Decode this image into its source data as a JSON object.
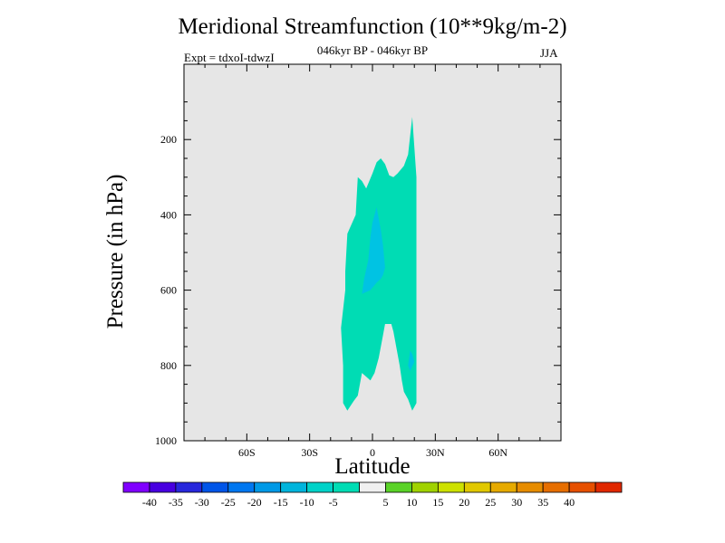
{
  "chart_data": {
    "type": "contour",
    "title": "Meridional Streamfunction (10**9kg/m-2)",
    "subtitle": "046kyr BP - 046kyr BP",
    "expt_label": "Expt = tdxoI-tdwzI",
    "season": "JJA",
    "xlabel": "Latitude",
    "ylabel": "Pressure (in hPa)",
    "xlim": [
      -90,
      90
    ],
    "ylim": [
      1000,
      0
    ],
    "x_ticks": [
      {
        "value": -60,
        "label": "60S"
      },
      {
        "value": -30,
        "label": "30S"
      },
      {
        "value": 0,
        "label": "0"
      },
      {
        "value": 30,
        "label": "30N"
      },
      {
        "value": 60,
        "label": "60N"
      }
    ],
    "y_ticks": [
      {
        "value": 200,
        "label": "200"
      },
      {
        "value": 400,
        "label": "400"
      },
      {
        "value": 600,
        "label": "600"
      },
      {
        "value": 800,
        "label": "800"
      },
      {
        "value": 1000,
        "label": "1000"
      }
    ],
    "background_color": "#e6e6e6",
    "regions": [
      {
        "level": "-10 to -5",
        "color": "#00dcb4",
        "points": [
          [
            -12,
            920
          ],
          [
            -14,
            900
          ],
          [
            -14,
            800
          ],
          [
            -15,
            700
          ],
          [
            -13,
            600
          ],
          [
            -13,
            550
          ],
          [
            -12,
            450
          ],
          [
            -8,
            400
          ],
          [
            -7,
            300
          ],
          [
            -5,
            310
          ],
          [
            -3,
            330
          ],
          [
            0,
            290
          ],
          [
            2,
            260
          ],
          [
            4,
            250
          ],
          [
            6,
            265
          ],
          [
            8,
            295
          ],
          [
            10,
            300
          ],
          [
            12,
            290
          ],
          [
            15,
            270
          ],
          [
            17,
            240
          ],
          [
            19,
            140
          ],
          [
            21,
            300
          ],
          [
            21,
            450
          ],
          [
            21,
            600
          ],
          [
            21,
            900
          ],
          [
            20,
            910
          ],
          [
            19,
            920
          ],
          [
            17,
            890
          ],
          [
            15,
            870
          ],
          [
            14,
            840
          ],
          [
            13,
            800
          ],
          [
            12,
            770
          ],
          [
            11,
            740
          ],
          [
            10,
            710
          ],
          [
            9,
            690
          ],
          [
            6,
            690
          ],
          [
            5,
            720
          ],
          [
            3,
            780
          ],
          [
            1,
            820
          ],
          [
            -1,
            840
          ],
          [
            -3,
            830
          ],
          [
            -5,
            820
          ],
          [
            -7,
            880
          ],
          [
            -9,
            895
          ]
        ]
      },
      {
        "level": "-15 to -10",
        "color": "#00c3e3",
        "points": [
          [
            -5,
            610
          ],
          [
            -1,
            600
          ],
          [
            2,
            580
          ],
          [
            4,
            570
          ],
          [
            5,
            560
          ],
          [
            6,
            540
          ],
          [
            5,
            480
          ],
          [
            4,
            440
          ],
          [
            3,
            410
          ],
          [
            2,
            380
          ],
          [
            0,
            420
          ],
          [
            -1,
            460
          ],
          [
            -2,
            520
          ],
          [
            -4,
            570
          ]
        ]
      },
      {
        "level": "-15 to -10",
        "color": "#00c3e3",
        "points": [
          [
            17,
            800
          ],
          [
            18,
            760
          ],
          [
            19,
            770
          ],
          [
            20,
            790
          ],
          [
            18,
            815
          ]
        ]
      }
    ],
    "colorbar": {
      "colors": [
        "#8000ff",
        "#4800e0",
        "#2828dc",
        "#0055e8",
        "#0077f0",
        "#0099e6",
        "#00b4dc",
        "#00d2c8",
        "#00dcb4",
        "#f0f0f0",
        "#5ad228",
        "#a0d200",
        "#cde100",
        "#e1c800",
        "#e6aa00",
        "#e68c00",
        "#e66e00",
        "#e65000",
        "#e02800"
      ],
      "labels": [
        "-40",
        "-35",
        "-30",
        "-25",
        "-20",
        "-15",
        "-10",
        "-5",
        "5",
        "10",
        "15",
        "20",
        "25",
        "30",
        "35",
        "40"
      ]
    }
  }
}
